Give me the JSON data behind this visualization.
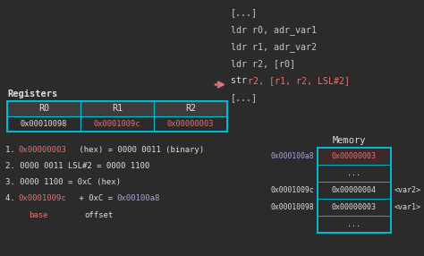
{
  "bg_color": "#2b2b2b",
  "cyan": "#00bcd4",
  "red": "#e57373",
  "purple": "#b39ddb",
  "white": "#e0e0e0",
  "code_color": "#c8c8c8",
  "registers_label": "Registers",
  "reg_headers": [
    "R0",
    "R1",
    "R2"
  ],
  "reg_values": [
    "0x00010098",
    "0x0001009c",
    "0x00000003"
  ],
  "reg_val_colors": [
    "#e0e0e0",
    "#e57373",
    "#e57373"
  ],
  "code_lines": [
    "[...]",
    "ldr r0, adr_var1",
    "ldr r1, adr_var2",
    "ldr r2, [r0]",
    "str r2, [r1, r2, LSL#2]",
    "[...]"
  ],
  "arrow_line_idx": 4,
  "memory_label": "Memory",
  "mem_addr_label": "0x000100a8",
  "mem_rows": [
    {
      "addr": "",
      "val": "0x00000003",
      "tag": "",
      "addr_color": "#b39ddb",
      "val_color": "#e57373",
      "highlight": true
    },
    {
      "addr": "",
      "val": "...",
      "tag": "",
      "addr_color": "#e0e0e0",
      "val_color": "#e0e0e0",
      "highlight": false
    },
    {
      "addr": "0x0001009c",
      "val": "0x00000004",
      "tag": "<var2>",
      "addr_color": "#e0e0e0",
      "val_color": "#e0e0e0",
      "highlight": false
    },
    {
      "addr": "0x00010098",
      "val": "0x00000003",
      "tag": "<var1>",
      "addr_color": "#e0e0e0",
      "val_color": "#e0e0e0",
      "highlight": false
    },
    {
      "addr": "",
      "val": "...",
      "tag": "",
      "addr_color": "#e0e0e0",
      "val_color": "#e0e0e0",
      "highlight": false
    }
  ],
  "step1_num": "1. ",
  "step1_red": "0x00000003",
  "step1_rest": " (hex) = 0000 0011 (binary)",
  "step2": "2. 0000 0011 LSL#2 = 0000 1100",
  "step3": "3. 0000 1100 = 0xC (hex)",
  "step4_num": "4. ",
  "step4_red": "0x0001009c",
  "step4_mid": " + 0xC = ",
  "step4_purple": "0x00100a8",
  "base_label": "base",
  "offset_label": "offset"
}
